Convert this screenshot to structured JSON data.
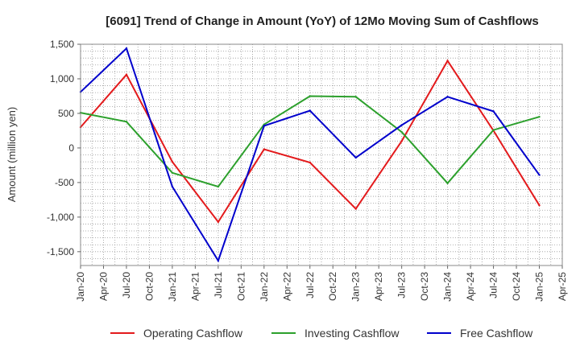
{
  "chart_data": {
    "type": "line",
    "title": "[6091]  Trend of Change in Amount (YoY) of 12Mo Moving Sum of Cashflows",
    "xlabel": "",
    "ylabel": "Amount (million yen)",
    "ylim": [
      -1700,
      1500
    ],
    "yticks": [
      1500,
      1000,
      500,
      0,
      -500,
      -1000,
      -1500
    ],
    "ytick_labels": [
      "1,500",
      "1,000",
      "500",
      "0",
      "-500",
      "-1,000",
      "-1,500"
    ],
    "categories": [
      "Jan-20",
      "Apr-20",
      "Jul-20",
      "Oct-20",
      "Jan-21",
      "Apr-21",
      "Jul-21",
      "Oct-21",
      "Jan-22",
      "Apr-22",
      "Jul-22",
      "Oct-22",
      "Jan-23",
      "Apr-23",
      "Jul-23",
      "Oct-23",
      "Jan-24",
      "Apr-24",
      "Jul-24",
      "Oct-24",
      "Jan-25",
      "Apr-25"
    ],
    "grid": true,
    "legend_position": "bottom",
    "series": [
      {
        "name": "Operating Cashflow",
        "color": "#e31a1c",
        "points": [
          {
            "x": "Jan-20",
            "y": 300
          },
          {
            "x": "Jul-20",
            "y": 1060
          },
          {
            "x": "Jan-21",
            "y": -200
          },
          {
            "x": "Jul-21",
            "y": -1070
          },
          {
            "x": "Jan-22",
            "y": -20
          },
          {
            "x": "Jul-22",
            "y": -210
          },
          {
            "x": "Jan-23",
            "y": -880
          },
          {
            "x": "Jul-23",
            "y": 100
          },
          {
            "x": "Jan-24",
            "y": 1260
          },
          {
            "x": "Jul-24",
            "y": 250
          },
          {
            "x": "Jan-25",
            "y": -830
          }
        ]
      },
      {
        "name": "Investing Cashflow",
        "color": "#2ca02c",
        "points": [
          {
            "x": "Jan-20",
            "y": 510
          },
          {
            "x": "Jul-20",
            "y": 380
          },
          {
            "x": "Jan-21",
            "y": -360
          },
          {
            "x": "Jul-21",
            "y": -560
          },
          {
            "x": "Jan-22",
            "y": 340
          },
          {
            "x": "Jul-22",
            "y": 750
          },
          {
            "x": "Jan-23",
            "y": 740
          },
          {
            "x": "Jul-23",
            "y": 230
          },
          {
            "x": "Jan-24",
            "y": -510
          },
          {
            "x": "Jul-24",
            "y": 260
          },
          {
            "x": "Jan-25",
            "y": 450
          }
        ]
      },
      {
        "name": "Free Cashflow",
        "color": "#0000cc",
        "points": [
          {
            "x": "Jan-20",
            "y": 810
          },
          {
            "x": "Jul-20",
            "y": 1440
          },
          {
            "x": "Jan-21",
            "y": -560
          },
          {
            "x": "Jul-21",
            "y": -1630
          },
          {
            "x": "Jan-22",
            "y": 320
          },
          {
            "x": "Jul-22",
            "y": 540
          },
          {
            "x": "Jan-23",
            "y": -140
          },
          {
            "x": "Jul-23",
            "y": 330
          },
          {
            "x": "Jan-24",
            "y": 740
          },
          {
            "x": "Jul-24",
            "y": 530
          },
          {
            "x": "Jan-25",
            "y": -390
          }
        ]
      }
    ]
  }
}
